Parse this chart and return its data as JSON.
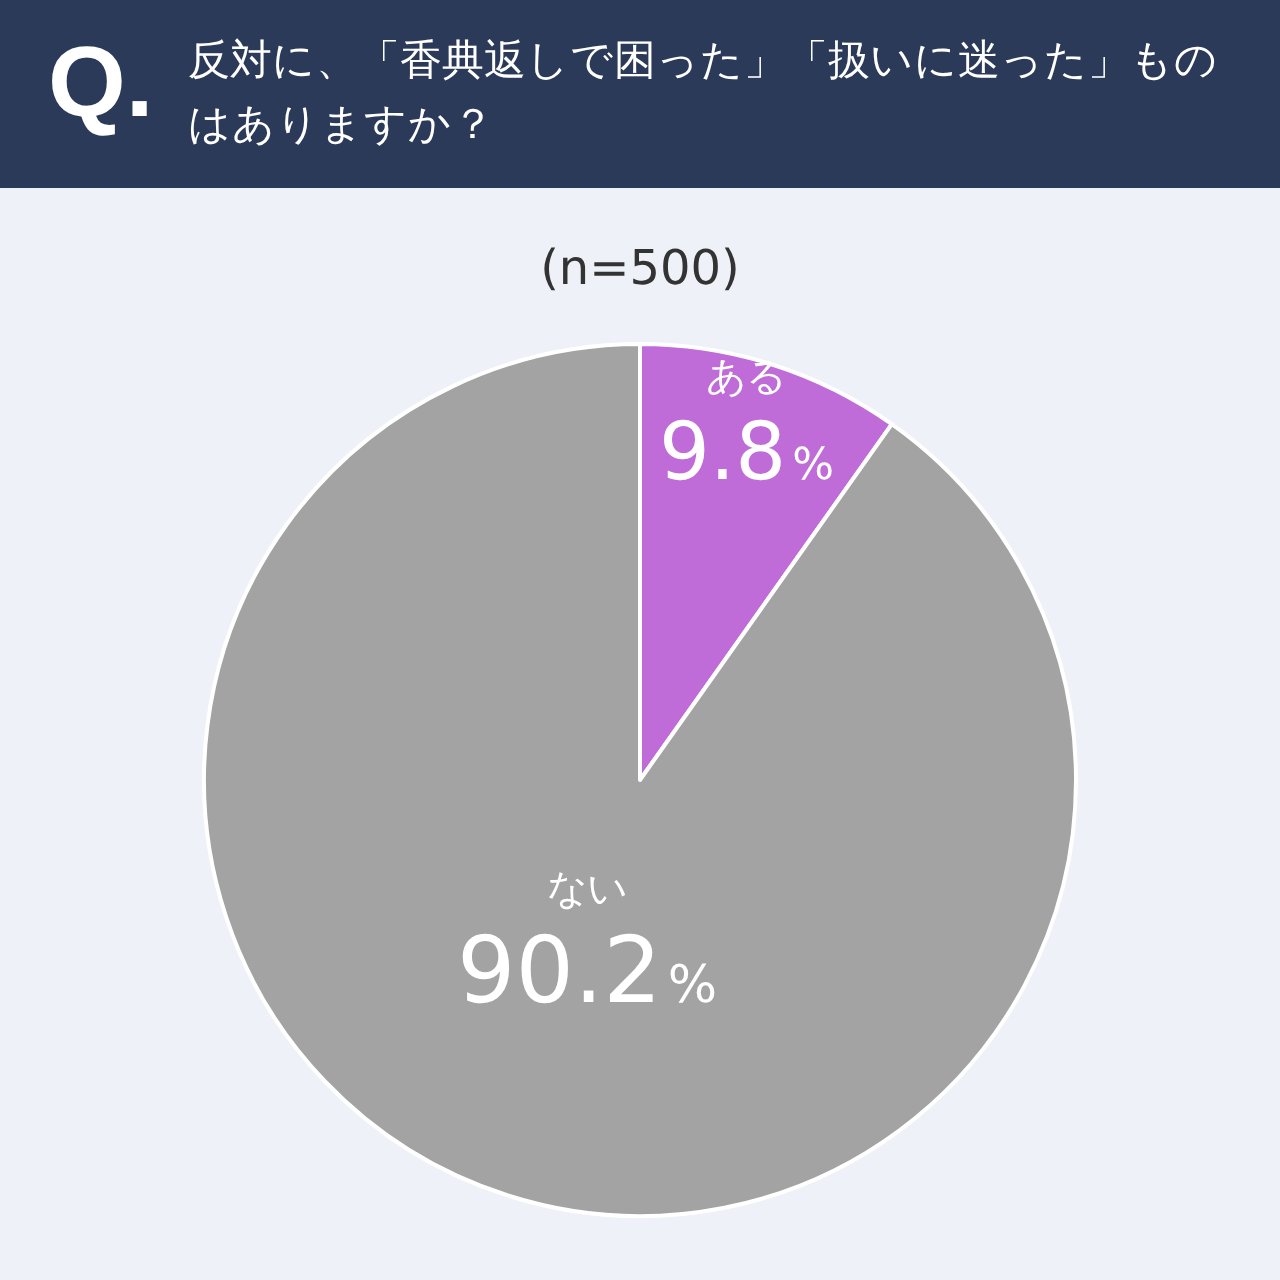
{
  "chart_data": {
    "type": "pie",
    "title": "反対に、「香典返しで困った」「扱いに迷った」ものはありますか？",
    "subtitle": "(n=500)",
    "annotations": [
      "Q."
    ],
    "categories": [
      "ある",
      "ない"
    ],
    "values": [
      9.8,
      90.2
    ],
    "colors": [
      "#c06cd8",
      "#a3a3a3"
    ],
    "value_labels": [
      "9.8%",
      "90.2%"
    ]
  }
}
